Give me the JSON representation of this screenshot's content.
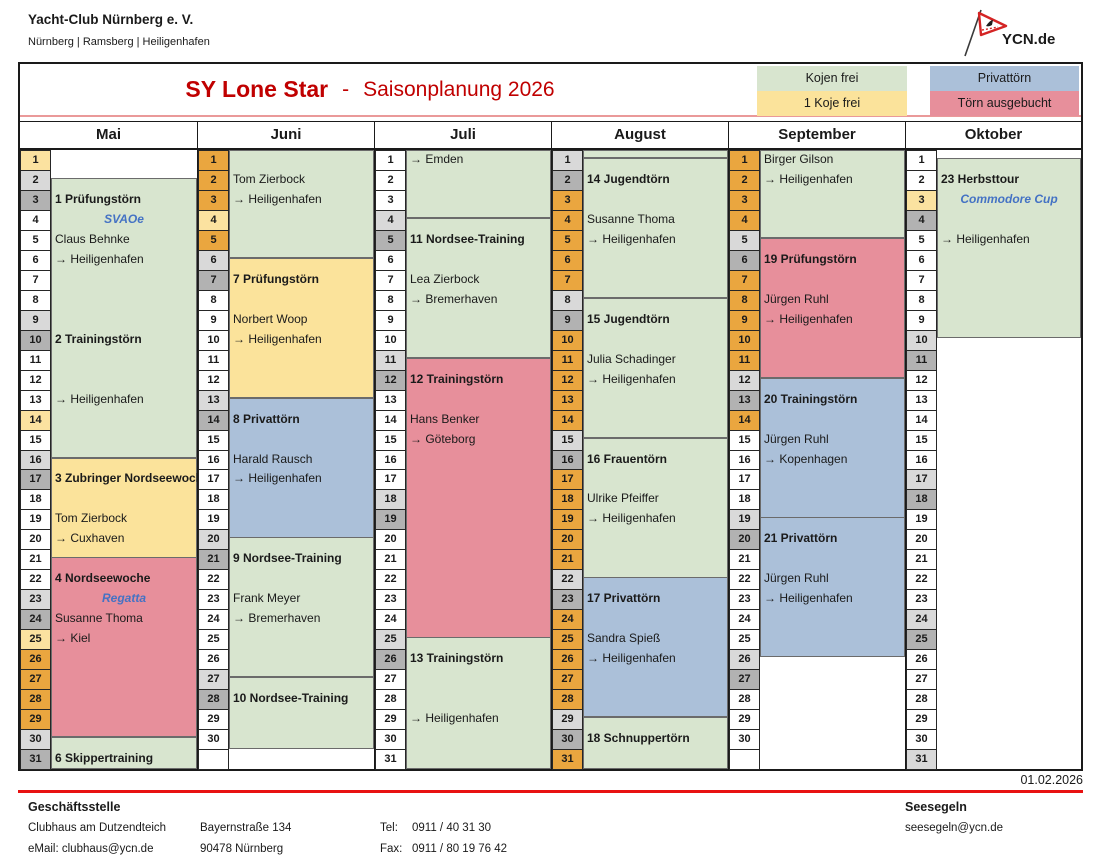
{
  "header": {
    "club_name": "Yacht-Club Nürnberg e. V.",
    "club_locations": "Nürnberg | Ramsberg | Heiligenhafen",
    "logo_text": "YCN.de"
  },
  "title": {
    "boat": "SY Lone Star",
    "separator": "-",
    "season": "Saisonplanung 2026"
  },
  "legend": [
    {
      "label": "Kojen frei",
      "status": "free"
    },
    {
      "label": "1 Koje frei",
      "status": "one_free"
    },
    {
      "label": "Privattörn",
      "status": "private"
    },
    {
      "label": "Törn ausgebucht",
      "status": "booked"
    }
  ],
  "colors": {
    "free": "#d8e5cf",
    "one_free": "#fbe39b",
    "private": "#abc0d9",
    "booked": "#e78f9b",
    "weekday": "#ffffff",
    "saturday": "#d9d9d9",
    "sunday": "#b2b2b2",
    "public_holiday": "#fbe2a0",
    "school_vacation": "#eaa63f",
    "blank": "#ffffff",
    "title_red": "#c00000",
    "note_blue": "#4472c4",
    "pink_rule": "#ea9999",
    "red_rule": "#e81111"
  },
  "calendar": {
    "day_type_codes": {
      "w": "weekday",
      "s": "saturday",
      "u": "sunday",
      "h": "public_holiday",
      "v": "school_vacation",
      "b": "blank"
    },
    "months": [
      {
        "name": "Mai",
        "days": "hsuwwwwwsuwwwhwsuwwwwwsuhvvvvsu",
        "blocks": [
          {
            "start": 1.4,
            "end": 15.4,
            "status": "free"
          },
          {
            "start": 15.4,
            "end": 20.4,
            "status": "one_free"
          },
          {
            "start": 20.4,
            "end": 29.4,
            "status": "booked"
          },
          {
            "start": 29.4,
            "end": 31,
            "status": "free"
          }
        ],
        "entries": [
          {
            "row": 3,
            "kind": "tour",
            "text": "1 Prüfungstörn"
          },
          {
            "row": 4,
            "kind": "note",
            "text": "SVAOe"
          },
          {
            "row": 5,
            "kind": "skipper",
            "text": "Claus Behnke"
          },
          {
            "row": 6,
            "kind": "route",
            "text": "→ Heiligenhafen"
          },
          {
            "row": 10,
            "kind": "tour",
            "text": "2 Trainingstörn"
          },
          {
            "row": 13,
            "kind": "route",
            "text": "→ Heiligenhafen"
          },
          {
            "row": 17,
            "kind": "tour",
            "text": "3 Zubringer Nordseewoche"
          },
          {
            "row": 19,
            "kind": "skipper",
            "text": "Tom Zierbock"
          },
          {
            "row": 20,
            "kind": "route",
            "text": "→ Cuxhaven"
          },
          {
            "row": 22,
            "kind": "tour",
            "text": "4 Nordseewoche"
          },
          {
            "row": 23,
            "kind": "note",
            "text": "Regatta"
          },
          {
            "row": 24,
            "kind": "skipper",
            "text": "Susanne Thoma"
          },
          {
            "row": 25,
            "kind": "route",
            "text": "→ Kiel"
          },
          {
            "row": 31,
            "kind": "tour",
            "text": "6 Skippertraining"
          }
        ]
      },
      {
        "name": "Juni",
        "days": "vvvhvsuwwwwwsuwwwwwsuwwwwwsuwwb",
        "blocks": [
          {
            "start": 0,
            "end": 5.4,
            "status": "free"
          },
          {
            "start": 5.4,
            "end": 12.4,
            "status": "one_free"
          },
          {
            "start": 12.4,
            "end": 19.4,
            "status": "private"
          },
          {
            "start": 19.4,
            "end": 26.4,
            "status": "free"
          },
          {
            "start": 26.4,
            "end": 30,
            "status": "free"
          }
        ],
        "entries": [
          {
            "row": 2,
            "kind": "skipper",
            "text": "Tom Zierbock"
          },
          {
            "row": 3,
            "kind": "route",
            "text": "→ Heiligenhafen"
          },
          {
            "row": 7,
            "kind": "tour",
            "text": "7 Prüfungstörn"
          },
          {
            "row": 9,
            "kind": "skipper",
            "text": "Norbert Woop"
          },
          {
            "row": 10,
            "kind": "route",
            "text": "→ Heiligenhafen"
          },
          {
            "row": 14,
            "kind": "tour",
            "text": "8 Privattörn"
          },
          {
            "row": 16,
            "kind": "skipper",
            "text": "Harald Rausch"
          },
          {
            "row": 17,
            "kind": "route",
            "text": "→ Heiligenhafen"
          },
          {
            "row": 21,
            "kind": "tour",
            "text": "9 Nordsee-Training"
          },
          {
            "row": 23,
            "kind": "skipper",
            "text": "Frank Meyer"
          },
          {
            "row": 24,
            "kind": "route",
            "text": "→ Bremerhaven"
          },
          {
            "row": 28,
            "kind": "tour",
            "text": "10 Nordsee-Training"
          }
        ]
      },
      {
        "name": "Juli",
        "days": "wwwsuwwwwwsuwwwwwsuwwwwwsuwwwww",
        "blocks": [
          {
            "start": 0,
            "end": 3.4,
            "status": "free"
          },
          {
            "start": 3.4,
            "end": 10.4,
            "status": "free"
          },
          {
            "start": 10.4,
            "end": 24.4,
            "status": "booked"
          },
          {
            "start": 24.4,
            "end": 31,
            "status": "free"
          }
        ],
        "entries": [
          {
            "row": 1,
            "kind": "route",
            "text": "→ Emden"
          },
          {
            "row": 5,
            "kind": "tour",
            "text": "11 Nordsee-Training"
          },
          {
            "row": 7,
            "kind": "skipper",
            "text": "Lea Zierbock"
          },
          {
            "row": 8,
            "kind": "route",
            "text": "→ Bremerhaven"
          },
          {
            "row": 12,
            "kind": "tour",
            "text": "12 Trainingstörn"
          },
          {
            "row": 14,
            "kind": "skipper",
            "text": "Hans Benker"
          },
          {
            "row": 15,
            "kind": "route",
            "text": "→ Göteborg"
          },
          {
            "row": 26,
            "kind": "tour",
            "text": "13 Trainingstörn"
          },
          {
            "row": 29,
            "kind": "route",
            "text": "→ Heiligenhafen"
          }
        ]
      },
      {
        "name": "August",
        "days": "suvvvvvsuvvvvvsuvvvvvsuvvvvvsuv",
        "blocks": [
          {
            "start": 0,
            "end": 0.4,
            "status": "free"
          },
          {
            "start": 0.4,
            "end": 7.4,
            "status": "free"
          },
          {
            "start": 7.4,
            "end": 14.4,
            "status": "free"
          },
          {
            "start": 14.4,
            "end": 21.4,
            "status": "free"
          },
          {
            "start": 21.4,
            "end": 28.4,
            "status": "private"
          },
          {
            "start": 28.4,
            "end": 31,
            "status": "free"
          }
        ],
        "entries": [
          {
            "row": 2,
            "kind": "tour",
            "text": "14 Jugendtörn"
          },
          {
            "row": 4,
            "kind": "skipper",
            "text": "Susanne Thoma"
          },
          {
            "row": 5,
            "kind": "route",
            "text": "→ Heiligenhafen"
          },
          {
            "row": 9,
            "kind": "tour",
            "text": "15 Jugendtörn"
          },
          {
            "row": 11,
            "kind": "skipper",
            "text": "Julia Schadinger"
          },
          {
            "row": 12,
            "kind": "route",
            "text": "→ Heiligenhafen"
          },
          {
            "row": 16,
            "kind": "tour",
            "text": "16 Frauentörn"
          },
          {
            "row": 18,
            "kind": "skipper",
            "text": "Ulrike Pfeiffer"
          },
          {
            "row": 19,
            "kind": "route",
            "text": "→ Heiligenhafen"
          },
          {
            "row": 23,
            "kind": "tour",
            "text": "17 Privattörn"
          },
          {
            "row": 25,
            "kind": "skipper",
            "text": "Sandra Spieß"
          },
          {
            "row": 26,
            "kind": "route",
            "text": "→ Heiligenhafen"
          },
          {
            "row": 30,
            "kind": "tour",
            "text": "18 Schnuppertörn"
          }
        ]
      },
      {
        "name": "September",
        "days": "vvvvsuvvvvvsuvwwwwsuwwwwwsuwwwb",
        "blocks": [
          {
            "start": 0,
            "end": 4.4,
            "status": "free"
          },
          {
            "start": 4.4,
            "end": 11.4,
            "status": "booked"
          },
          {
            "start": 11.4,
            "end": 18.4,
            "status": "private"
          },
          {
            "start": 18.4,
            "end": 25.4,
            "status": "private"
          }
        ],
        "entries": [
          {
            "row": 1,
            "kind": "skipper",
            "text": "Birger Gilson"
          },
          {
            "row": 2,
            "kind": "route",
            "text": "→ Heiligenhafen"
          },
          {
            "row": 6,
            "kind": "tour",
            "text": "19 Prüfungstörn"
          },
          {
            "row": 8,
            "kind": "skipper",
            "text": "Jürgen Ruhl"
          },
          {
            "row": 9,
            "kind": "route",
            "text": "→ Heiligenhafen"
          },
          {
            "row": 13,
            "kind": "tour",
            "text": "20 Trainingstörn"
          },
          {
            "row": 15,
            "kind": "skipper",
            "text": "Jürgen Ruhl"
          },
          {
            "row": 16,
            "kind": "route",
            "text": "→ Kopenhagen"
          },
          {
            "row": 20,
            "kind": "tour",
            "text": "21 Privattörn"
          },
          {
            "row": 22,
            "kind": "skipper",
            "text": "Jürgen Ruhl"
          },
          {
            "row": 23,
            "kind": "route",
            "text": "→ Heiligenhafen"
          }
        ]
      },
      {
        "name": "Oktober",
        "days": "wwhuwwwwwsuwwwwwsuwwwwwsuwwwwws",
        "blocks": [
          {
            "start": 0.4,
            "end": 9.4,
            "status": "free"
          }
        ],
        "entries": [
          {
            "row": 2,
            "kind": "tour",
            "text": "23 Herbsttour"
          },
          {
            "row": 3,
            "kind": "note",
            "text": "Commodore Cup"
          },
          {
            "row": 5,
            "kind": "route",
            "text": "→ Heiligenhafen"
          }
        ]
      }
    ]
  },
  "date_note": "01.02.2026",
  "footer": {
    "left_title": "Geschäftsstelle",
    "address_line1": "Clubhaus am Dutzendteich",
    "address_line2": "eMail: clubhaus@ycn.de",
    "street": "Bayernstraße 134",
    "city": "90478 Nürnberg",
    "tel_label": "Tel:",
    "tel_number": "0911 / 40 31 30",
    "fax_label": "Fax:",
    "fax_number": "0911 / 80 19 76 42",
    "right_title": "Seesegeln",
    "right_email": "seesegeln@ycn.de"
  }
}
